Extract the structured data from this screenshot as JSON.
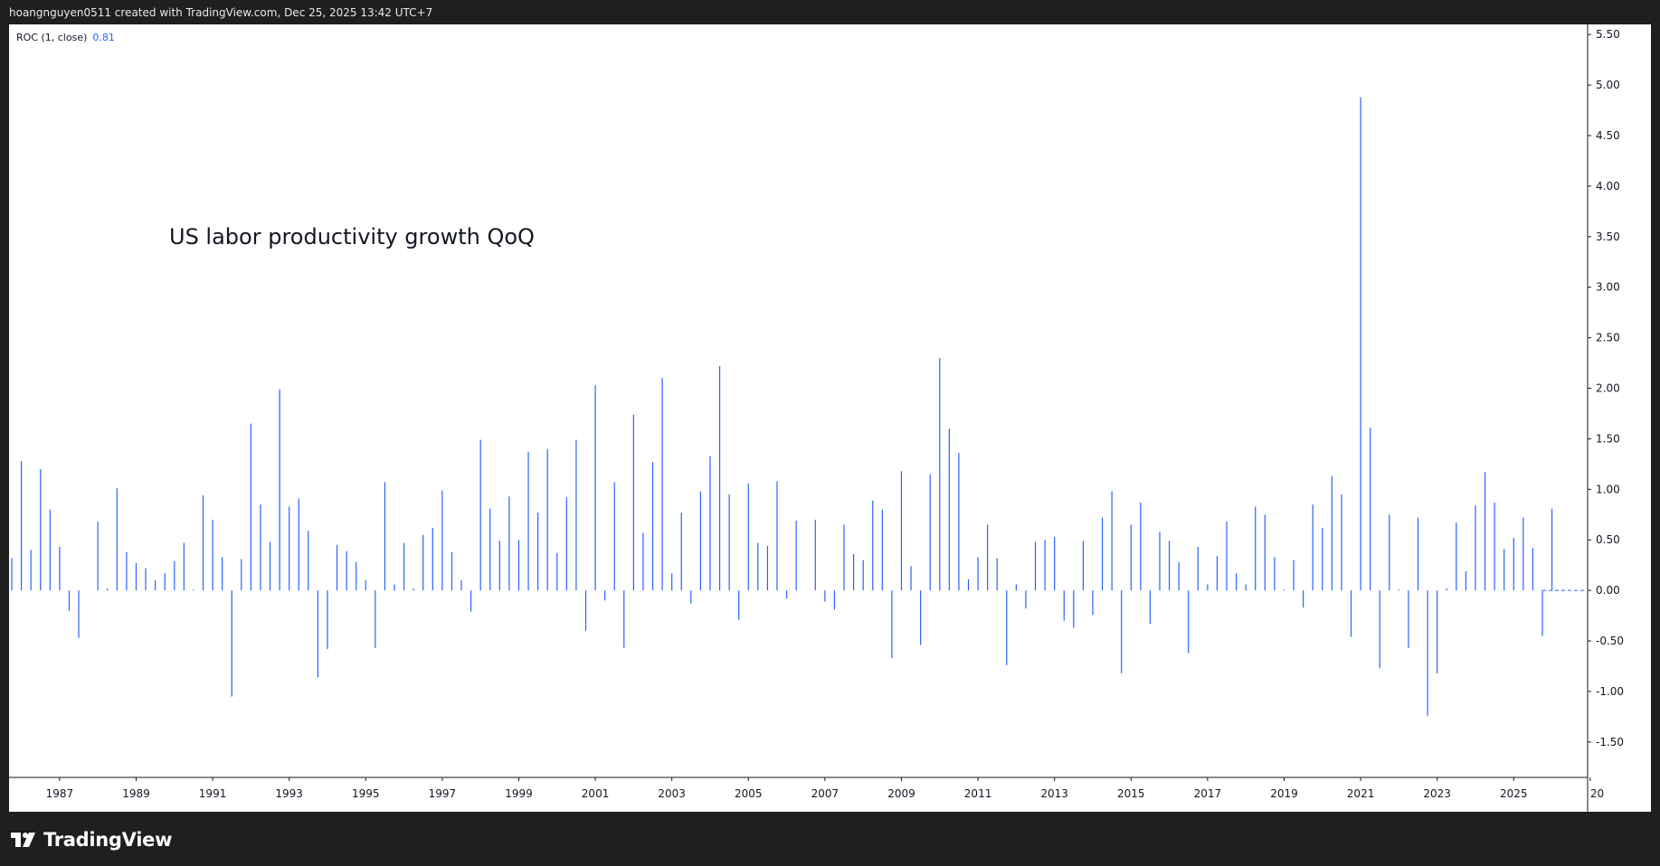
{
  "header": {
    "credit": "hoangnguyen0511 created with TradingView.com, Dec 25, 2025 13:42 UTC+7"
  },
  "legend": {
    "indicator": "ROC (1, close)",
    "last_value": "0.81"
  },
  "note": "US labor productivity growth QoQ",
  "footer": {
    "brand": "TradingView",
    "logo_icon": "tradingview-logo-icon"
  },
  "colors": {
    "bar": "#2962ff",
    "zero_line": "#2962ff",
    "axis": "#131722",
    "background": "#ffffff",
    "frame": "#1f1f1f"
  },
  "chart_data": {
    "type": "bar",
    "title": "",
    "xlabel": "",
    "ylabel": "",
    "ylim": [
      -1.85,
      5.6
    ],
    "y_ticks": [
      "5.50",
      "5.00",
      "4.50",
      "4.00",
      "3.50",
      "3.00",
      "2.50",
      "2.00",
      "1.50",
      "1.00",
      "0.50",
      "0.00",
      "-0.50",
      "-1.00",
      "-1.50"
    ],
    "x_tick_labels": [
      "1987",
      "1989",
      "1991",
      "1993",
      "1995",
      "1997",
      "1999",
      "2001",
      "2003",
      "2005",
      "2007",
      "2009",
      "2011",
      "2013",
      "2015",
      "2017",
      "2019",
      "2021",
      "2023",
      "2025",
      "20"
    ],
    "x_range": [
      1985.75,
      2025.75
    ],
    "grid": false,
    "x_start_quarter": "1985 Q4",
    "frequency": "quarterly",
    "values": [
      0.32,
      1.28,
      0.4,
      1.2,
      0.8,
      0.43,
      -0.2,
      -0.47,
      0.0,
      0.68,
      0.02,
      1.01,
      0.38,
      0.27,
      0.22,
      0.1,
      0.17,
      0.29,
      0.47,
      0.01,
      0.94,
      0.7,
      0.33,
      -1.05,
      0.31,
      1.65,
      0.85,
      0.48,
      1.99,
      0.83,
      0.91,
      0.59,
      -0.86,
      -0.58,
      0.45,
      0.39,
      0.28,
      0.1,
      -0.57,
      1.07,
      0.06,
      0.47,
      0.02,
      0.55,
      0.62,
      0.99,
      0.38,
      0.1,
      -0.21,
      1.49,
      0.81,
      0.49,
      0.93,
      0.5,
      1.37,
      0.77,
      1.4,
      0.37,
      0.92,
      1.49,
      -0.4,
      2.03,
      -0.1,
      1.07,
      -0.57,
      1.74,
      0.57,
      1.27,
      2.1,
      0.17,
      0.77,
      -0.13,
      0.98,
      1.33,
      2.22,
      0.95,
      -0.29,
      1.06,
      0.47,
      0.44,
      1.08,
      -0.08,
      0.69,
      0.0,
      0.7,
      -0.11,
      -0.19,
      0.65,
      0.36,
      0.3,
      0.89,
      0.8,
      -0.67,
      1.18,
      0.24,
      -0.54,
      1.15,
      2.3,
      1.6,
      1.36,
      0.11,
      0.33,
      0.65,
      0.32,
      -0.74,
      0.06,
      -0.18,
      0.48,
      0.5,
      0.53,
      -0.3,
      -0.37,
      0.49,
      -0.24,
      0.72,
      0.98,
      -0.82,
      0.65,
      0.87,
      -0.33,
      0.58,
      0.49,
      0.28,
      -0.62,
      0.43,
      0.06,
      0.34,
      0.68,
      0.17,
      0.06,
      0.83,
      0.75,
      0.33,
      0.01,
      0.3,
      -0.17,
      0.85,
      0.62,
      1.13,
      0.95,
      -0.46,
      4.88,
      1.61,
      -0.77,
      0.75,
      0.01,
      -0.57,
      0.72,
      -1.24,
      -0.82,
      0.02,
      0.67,
      0.19,
      0.84,
      1.17,
      0.87,
      0.41,
      0.52,
      0.72,
      0.42,
      -0.45,
      0.81
    ]
  }
}
